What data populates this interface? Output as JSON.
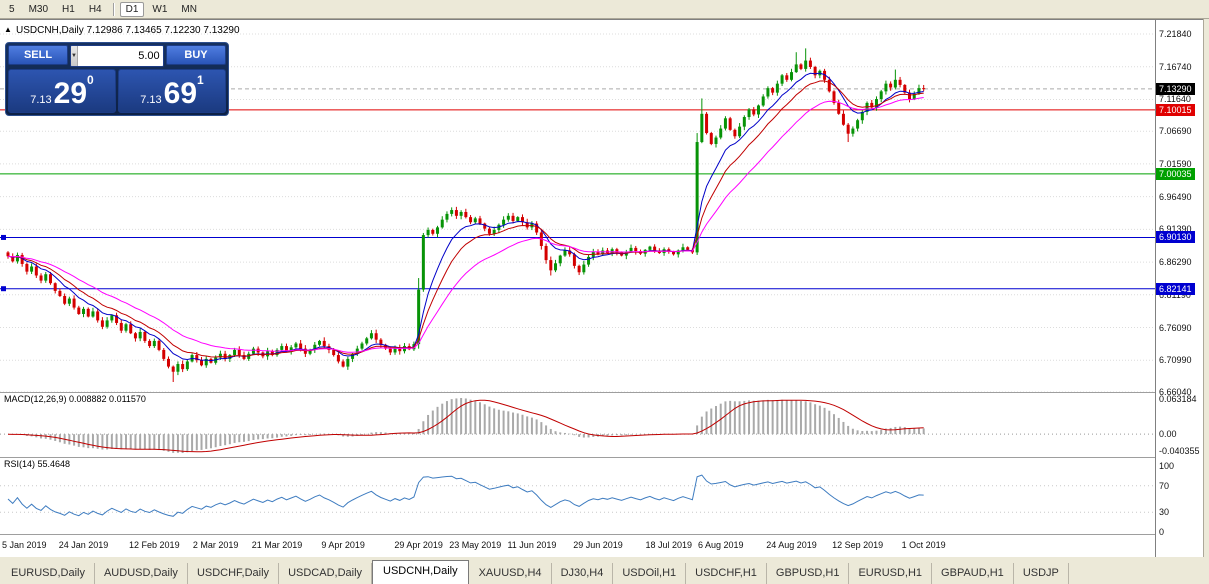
{
  "toolbar": {
    "groups": [
      [
        "5",
        "M30",
        "H1",
        "H4"
      ],
      [
        "D1",
        "W1",
        "MN"
      ]
    ],
    "active": "D1"
  },
  "chart": {
    "collapse_icon": "▲",
    "symbol_title": "USDCNH,Daily",
    "ohlc": "7.12986 7.13465 7.12230 7.13290"
  },
  "one_click": {
    "sell_label": "SELL",
    "buy_label": "BUY",
    "volume": "5.00",
    "dropdown_icon": "▼",
    "spin_up_icon": "▲",
    "spin_down_icon": "▼",
    "sell_price": {
      "prefix": "7.13",
      "big": "29",
      "sup": "0"
    },
    "buy_price": {
      "prefix": "7.13",
      "big": "69",
      "sup": "1"
    }
  },
  "price_axis": {
    "regular": [
      "7.21840",
      "7.16740",
      "7.11640",
      "7.06690",
      "7.01590",
      "6.96490",
      "6.91390",
      "6.86290",
      "6.81190",
      "6.76090",
      "6.70990",
      "6.66040"
    ],
    "tags": [
      {
        "price": 7.1329,
        "label": "7.13290",
        "bg": "#000000",
        "type": "current"
      },
      {
        "price": 7.10015,
        "label": "7.10015",
        "bg": "#E00000",
        "type": "hline"
      },
      {
        "price": 7.00035,
        "label": "7.00035",
        "bg": "#00A000",
        "type": "hline"
      },
      {
        "price": 6.9013,
        "label": "6.90130",
        "bg": "#0000D0",
        "type": "hline"
      },
      {
        "price": 6.82141,
        "label": "6.82141",
        "bg": "#0000D0",
        "type": "hline"
      }
    ]
  },
  "hlines": [
    {
      "price": 7.10015,
      "color": "#E00000",
      "handles": false
    },
    {
      "price": 7.00035,
      "color": "#00A000",
      "handles": false
    },
    {
      "price": 6.9013,
      "color": "#0000D0",
      "handles": true
    },
    {
      "price": 6.82141,
      "color": "#0000D0",
      "handles": true
    }
  ],
  "indicators": {
    "macd": {
      "label": "MACD(12,26,9) 0.008882 0.011570",
      "fast": 12,
      "slow": 26,
      "signal": 9,
      "scale_labels": [
        "0.063184",
        "0.00",
        "-0.040355"
      ],
      "histogram_color": "#A9A9A9",
      "signal_color": "#C00000"
    },
    "rsi": {
      "label": "RSI(14) 55.4648",
      "period": 14,
      "levels": [
        100,
        70,
        30,
        0
      ],
      "line_color": "#3E7CC0"
    }
  },
  "chart_data": {
    "type": "candlestick",
    "symbol": "USDCNH",
    "timeframe": "Daily",
    "price_range": [
      6.6604,
      7.2184
    ],
    "current_price": 7.1329,
    "bull_color": "#079307",
    "bear_color": "#D40000",
    "grid_color": "#DCDCDC",
    "first_open": 6.878,
    "wick_base": 0.0012,
    "wick_var": 0.0045,
    "closes": [
      6.872,
      6.864,
      6.874,
      6.86,
      6.848,
      6.856,
      6.842,
      6.834,
      6.844,
      6.83,
      6.818,
      6.81,
      6.798,
      6.806,
      6.792,
      6.782,
      6.79,
      6.778,
      6.786,
      6.772,
      6.762,
      6.772,
      6.78,
      6.768,
      6.756,
      6.766,
      6.752,
      6.744,
      6.754,
      6.74,
      6.732,
      6.74,
      6.726,
      6.712,
      6.7,
      6.692,
      6.704,
      6.696,
      6.708,
      6.718,
      6.71,
      6.702,
      6.712,
      6.706,
      6.714,
      6.72,
      6.712,
      6.718,
      6.726,
      6.718,
      6.712,
      6.72,
      6.728,
      6.722,
      6.716,
      6.724,
      6.718,
      6.726,
      6.732,
      6.724,
      6.73,
      6.736,
      6.728,
      6.72,
      6.726,
      6.734,
      6.74,
      6.732,
      6.726,
      6.718,
      6.708,
      6.7,
      6.712,
      6.72,
      6.728,
      6.736,
      6.744,
      6.752,
      6.742,
      6.734,
      6.728,
      6.722,
      6.73,
      6.724,
      6.732,
      6.727,
      6.735,
      6.82,
      6.905,
      6.913,
      6.907,
      6.917,
      6.929,
      6.938,
      6.944,
      6.935,
      6.941,
      6.933,
      6.925,
      6.931,
      6.923,
      6.915,
      6.907,
      6.913,
      6.921,
      6.929,
      6.935,
      6.927,
      6.933,
      6.925,
      6.917,
      6.923,
      6.909,
      6.888,
      6.866,
      6.85,
      6.861,
      6.873,
      6.881,
      6.875,
      6.857,
      6.847,
      6.859,
      6.871,
      6.879,
      6.875,
      6.881,
      6.877,
      6.883,
      6.878,
      6.873,
      6.879,
      6.885,
      6.88,
      6.876,
      6.882,
      6.887,
      6.881,
      6.877,
      6.883,
      6.879,
      6.875,
      6.881,
      6.886,
      6.882,
      6.878,
      7.05,
      7.094,
      7.064,
      7.047,
      7.057,
      7.071,
      7.087,
      7.069,
      7.059,
      7.074,
      7.089,
      7.101,
      7.093,
      7.107,
      7.121,
      7.134,
      7.127,
      7.141,
      7.154,
      7.147,
      7.159,
      7.171,
      7.164,
      7.177,
      7.167,
      7.154,
      7.161,
      7.147,
      7.129,
      7.111,
      7.094,
      7.077,
      7.063,
      7.071,
      7.084,
      7.097,
      7.111,
      7.104,
      7.117,
      7.129,
      7.141,
      7.135,
      7.147,
      7.139,
      7.127,
      7.117,
      7.125,
      7.134,
      7.1329
    ],
    "overrides": {
      "35": {
        "l": 6.676
      },
      "87": {
        "l": 6.728,
        "h": 6.838
      },
      "115": {
        "l": 6.842
      },
      "146": {
        "l": 6.874,
        "h": 7.064
      },
      "147": {
        "h": 7.118
      },
      "167": {
        "h": 7.19
      },
      "169": {
        "h": 7.196
      },
      "178": {
        "l": 7.05
      },
      "188": {
        "h": 7.163
      }
    },
    "ma_lines": [
      {
        "type": "EMA",
        "period": 8,
        "color": "#0000C8"
      },
      {
        "type": "EMA",
        "period": 13,
        "color": "#C00000"
      },
      {
        "type": "EMA",
        "period": 24,
        "color": "#FF00FF"
      }
    ],
    "x_ticks": [
      {
        "i": 0,
        "label": "5 Jan 2019"
      },
      {
        "i": 16,
        "label": "24 Jan 2019"
      },
      {
        "i": 31,
        "label": "12 Feb 2019"
      },
      {
        "i": 44,
        "label": "2 Mar 2019"
      },
      {
        "i": 57,
        "label": "21 Mar 2019"
      },
      {
        "i": 71,
        "label": "9 Apr 2019"
      },
      {
        "i": 87,
        "label": "29 Apr 2019"
      },
      {
        "i": 99,
        "label": "23 May 2019"
      },
      {
        "i": 111,
        "label": "11 Jun 2019"
      },
      {
        "i": 125,
        "label": "29 Jun 2019"
      },
      {
        "i": 140,
        "label": "18 Jul 2019"
      },
      {
        "i": 151,
        "label": "6 Aug 2019"
      },
      {
        "i": 166,
        "label": "24 Aug 2019"
      },
      {
        "i": 180,
        "label": "12 Sep 2019"
      },
      {
        "i": 194,
        "label": "1 Oct 2019"
      }
    ]
  },
  "tabs": {
    "active_index": 4,
    "items": [
      "EURUSD,Daily",
      "AUDUSD,Daily",
      "USDCHF,Daily",
      "USDCAD,Daily",
      "USDCNH,Daily",
      "XAUUSD,H4",
      "DJ30,H4",
      "USDOil,H1",
      "USDCHF,H1",
      "GBPUSD,H1",
      "EURUSD,H1",
      "GBPAUD,H1",
      "USDJP"
    ]
  }
}
